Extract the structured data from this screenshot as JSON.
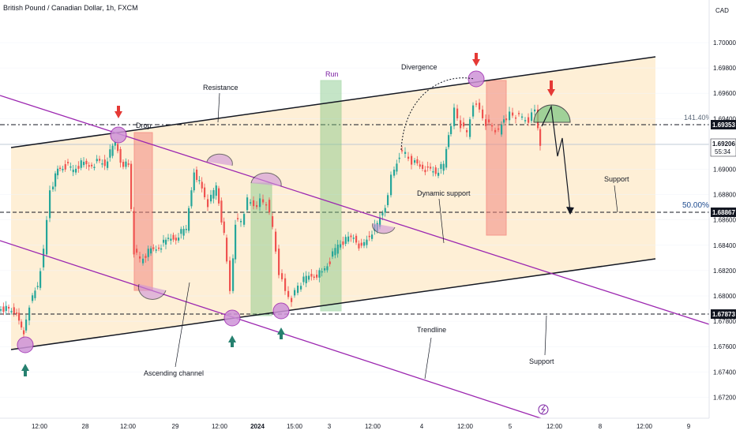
{
  "header": {
    "title": "British Pound / Canadian Dollar, 1h, FXCM",
    "currency": "CAD"
  },
  "chart_data": {
    "type": "candlestick",
    "y_ticks": [
      "1.70000",
      "1.69800",
      "1.69600",
      "1.69400",
      "1.69200",
      "1.69000",
      "1.68800",
      "1.68600",
      "1.68400",
      "1.68200",
      "1.68000",
      "1.67800",
      "1.67600",
      "1.67400",
      "1.67200"
    ],
    "x_ticks": [
      "12:00",
      "28",
      "12:00",
      "29",
      "12:00",
      "2024",
      "15:00",
      "3",
      "12:00",
      "4",
      "12:00",
      "5",
      "12:00",
      "8",
      "12:00",
      "9"
    ],
    "price_tags": [
      {
        "label": "1.69353",
        "kind": "level"
      },
      {
        "label": "1.69206",
        "kind": "last"
      },
      {
        "label": "55:34",
        "kind": "countdown"
      },
      {
        "label": "1.68867",
        "kind": "level"
      },
      {
        "label": "1.67873",
        "kind": "level"
      }
    ],
    "fib_labels": [
      "141.40%",
      "50.00%"
    ],
    "annotations": [
      "Resistance",
      "Drop",
      "Run",
      "Divergence",
      "Dynamic support",
      "Support",
      "Ascending channel",
      "Trendline",
      "Support"
    ],
    "series_colors": {
      "up": "#26a69a",
      "down": "#ef5350",
      "channel_fill": "#fde9c8",
      "trendline": "#9c27b0",
      "run_box": "#81c784",
      "drop_box": "#f28b82",
      "marker": "#ce93d8"
    }
  }
}
